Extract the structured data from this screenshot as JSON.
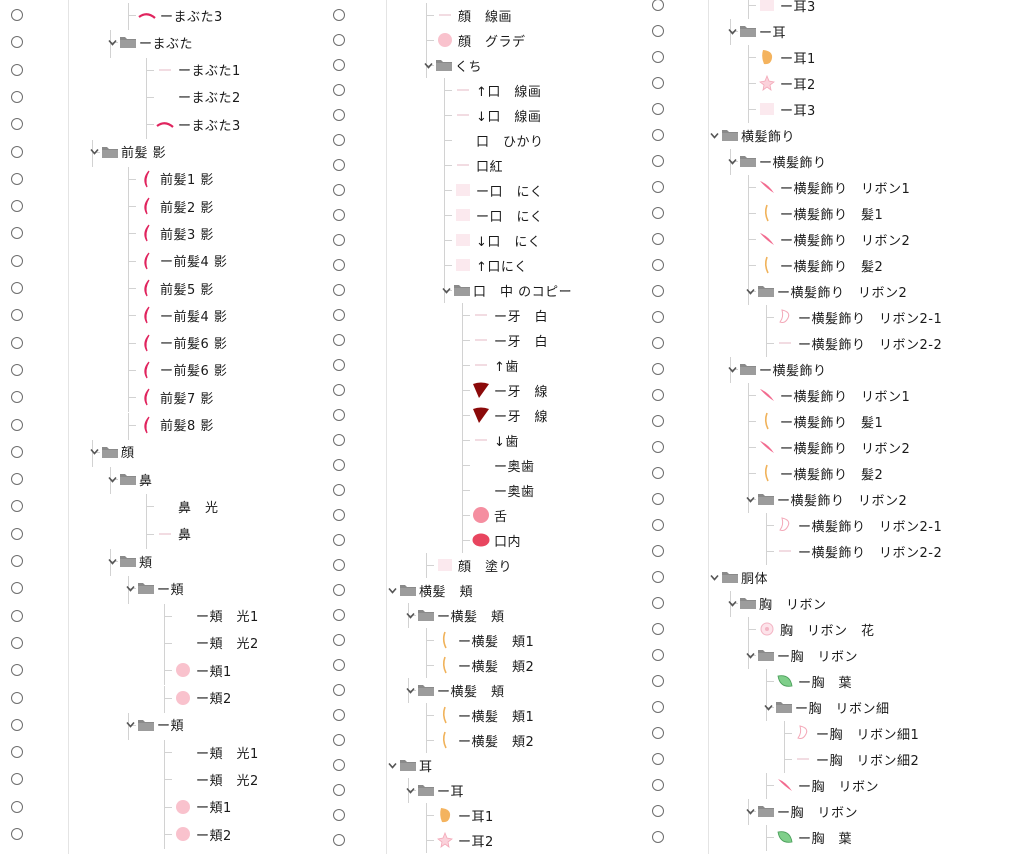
{
  "columns": [
    {
      "rows": [
        {
          "label": "ーまぶた3",
          "thumb": "red-stroke-thumbnail"
        },
        {
          "label": "ーまぶた",
          "folder": true
        },
        {
          "label": "ーまぶた1",
          "thumb": "faint-line-thumbnail"
        },
        {
          "label": "ーまぶた2",
          "thumb": "blank-thumbnail"
        },
        {
          "label": "ーまぶた3",
          "thumb": "red-stroke-thumbnail"
        },
        {
          "label": "前髪 影",
          "folder": true
        },
        {
          "label": "前髪1 影",
          "thumb": "red-shadow-thumbnail"
        },
        {
          "label": "前髪2 影",
          "thumb": "red-shadow-thumbnail"
        },
        {
          "label": "前髪3 影",
          "thumb": "red-shadow-thumbnail"
        },
        {
          "label": "ー前髪4 影",
          "thumb": "red-shadow-thumbnail"
        },
        {
          "label": "前髪5 影",
          "thumb": "red-shadow-thumbnail"
        },
        {
          "label": "ー前髪4 影",
          "thumb": "red-shadow-thumbnail"
        },
        {
          "label": "ー前髪6 影",
          "thumb": "red-shadow-thumbnail"
        },
        {
          "label": "ー前髪6 影",
          "thumb": "red-shadow-thumbnail"
        },
        {
          "label": "前髪7 影",
          "thumb": "red-shadow-thumbnail"
        },
        {
          "label": "前髪8 影",
          "thumb": "red-shadow-thumbnail"
        },
        {
          "label": "顔",
          "folder": true
        },
        {
          "label": "鼻",
          "folder": true
        },
        {
          "label": "鼻　光",
          "thumb": "blank-thumbnail"
        },
        {
          "label": "鼻",
          "thumb": "faint-line-thumbnail"
        },
        {
          "label": "頬",
          "folder": true
        },
        {
          "label": "ー頬",
          "folder": true
        },
        {
          "label": "ー頬　光1",
          "thumb": "blank-thumbnail"
        },
        {
          "label": "ー頬　光2",
          "thumb": "blank-thumbnail"
        },
        {
          "label": "ー頬1",
          "thumb": "pink-blush-thumbnail"
        },
        {
          "label": "ー頬2",
          "thumb": "pink-blush-thumbnail"
        },
        {
          "label": "ー頬",
          "folder": true
        },
        {
          "label": "ー頬　光1",
          "thumb": "blank-thumbnail"
        },
        {
          "label": "ー頬　光2",
          "thumb": "blank-thumbnail"
        },
        {
          "label": "ー頬1",
          "thumb": "pink-blush-thumbnail"
        },
        {
          "label": "ー頬2",
          "thumb": "pink-blush-thumbnail"
        }
      ]
    },
    {
      "rows": [
        {
          "label": "顔　線画",
          "thumb": "faint-line-thumbnail"
        },
        {
          "label": "顔　グラデ",
          "thumb": "pink-blush-thumbnail"
        },
        {
          "label": "くち",
          "folder": true
        },
        {
          "label": "↑口　線画",
          "thumb": "faint-line-thumbnail"
        },
        {
          "label": "↓口　線画",
          "thumb": "faint-line-thumbnail"
        },
        {
          "label": "口　ひかり",
          "thumb": "blank-thumbnail"
        },
        {
          "label": "口紅",
          "thumb": "faint-line-thumbnail"
        },
        {
          "label": "ー口　にく",
          "thumb": "faint-pink-thumbnail"
        },
        {
          "label": "ー口　にく",
          "thumb": "faint-pink-thumbnail"
        },
        {
          "label": "↓口　にく",
          "thumb": "faint-pink-thumbnail"
        },
        {
          "label": "↑口にく",
          "thumb": "faint-pink-thumbnail"
        },
        {
          "label": "口　中 のコピー",
          "folder": true
        },
        {
          "label": "ー牙　白",
          "thumb": "faint-line-thumbnail"
        },
        {
          "label": "ー牙　白",
          "thumb": "faint-line-thumbnail"
        },
        {
          "label": "↑歯",
          "thumb": "faint-line-thumbnail"
        },
        {
          "label": "ー牙　線",
          "thumb": "dark-red-fang-thumbnail"
        },
        {
          "label": "ー牙　線",
          "thumb": "dark-red-fang-thumbnail"
        },
        {
          "label": "↓歯",
          "thumb": "faint-line-thumbnail"
        },
        {
          "label": "ー奥歯",
          "thumb": "blank-thumbnail"
        },
        {
          "label": "ー奥歯",
          "thumb": "blank-thumbnail"
        },
        {
          "label": "舌",
          "thumb": "pink-circle-thumbnail"
        },
        {
          "label": "口内",
          "thumb": "red-oval-thumbnail"
        },
        {
          "label": "顔　塗り",
          "thumb": "faint-pink-thumbnail"
        },
        {
          "label": "横髪　頬",
          "folder": true
        },
        {
          "label": "ー横髪　頬",
          "folder": true
        },
        {
          "label": "ー横髪　頬1",
          "thumb": "orange-strand-thumbnail"
        },
        {
          "label": "ー横髪　頬2",
          "thumb": "orange-strand-thumbnail"
        },
        {
          "label": "ー横髪　頬",
          "folder": true
        },
        {
          "label": "ー横髪　頬1",
          "thumb": "orange-strand-thumbnail"
        },
        {
          "label": "ー横髪　頬2",
          "thumb": "orange-strand-thumbnail"
        },
        {
          "label": "耳",
          "folder": true
        },
        {
          "label": "ー耳",
          "folder": true
        },
        {
          "label": "ー耳1",
          "thumb": "orange-ear-thumbnail"
        },
        {
          "label": "ー耳2",
          "thumb": "pink-ear-thumbnail"
        }
      ]
    },
    {
      "rows": [
        {
          "label": "ー耳3",
          "thumb": "faint-pink-thumbnail"
        },
        {
          "label": "ー耳",
          "folder": true
        },
        {
          "label": "ー耳1",
          "thumb": "orange-ear-thumbnail"
        },
        {
          "label": "ー耳2",
          "thumb": "pink-ear-thumbnail"
        },
        {
          "label": "ー耳3",
          "thumb": "faint-pink-thumbnail"
        },
        {
          "label": "横髪飾り",
          "folder": true
        },
        {
          "label": "ー横髪飾り",
          "folder": true
        },
        {
          "label": "ー横髪飾り　リボン1",
          "thumb": "pink-ribbon-thumbnail"
        },
        {
          "label": "ー横髪飾り　髪1",
          "thumb": "orange-strand-thumbnail"
        },
        {
          "label": "ー横髪飾り　リボン2",
          "thumb": "pink-ribbon-thumbnail"
        },
        {
          "label": "ー横髪飾り　髪2",
          "thumb": "orange-strand-thumbnail"
        },
        {
          "label": "ー横髪飾り　リボン2",
          "folder": true
        },
        {
          "label": "ー横髪飾り　リボン2-1",
          "thumb": "pink-outline-thumbnail"
        },
        {
          "label": "ー横髪飾り　リボン2-2",
          "thumb": "faint-line-thumbnail"
        },
        {
          "label": "ー横髪飾り",
          "folder": true
        },
        {
          "label": "ー横髪飾り　リボン1",
          "thumb": "pink-ribbon-thumbnail"
        },
        {
          "label": "ー横髪飾り　髪1",
          "thumb": "orange-strand-thumbnail"
        },
        {
          "label": "ー横髪飾り　リボン2",
          "thumb": "pink-ribbon-thumbnail"
        },
        {
          "label": "ー横髪飾り　髪2",
          "thumb": "orange-strand-thumbnail"
        },
        {
          "label": "ー横髪飾り　リボン2",
          "folder": true
        },
        {
          "label": "ー横髪飾り　リボン2-1",
          "thumb": "pink-outline-thumbnail"
        },
        {
          "label": "ー横髪飾り　リボン2-2",
          "thumb": "faint-line-thumbnail"
        },
        {
          "label": "胴体",
          "folder": true
        },
        {
          "label": "胸　リボン",
          "folder": true
        },
        {
          "label": "胸　リボン　花",
          "thumb": "pink-flower-thumbnail"
        },
        {
          "label": "ー胸　リボン",
          "folder": true
        },
        {
          "label": "ー胸　葉",
          "thumb": "green-leaf-thumbnail"
        },
        {
          "label": "ー胸　リボン細",
          "folder": true
        },
        {
          "label": "ー胸　リボン細1",
          "thumb": "pink-outline-thumbnail"
        },
        {
          "label": "ー胸　リボン細2",
          "thumb": "faint-line-thumbnail"
        },
        {
          "label": "ー胸　リボン",
          "thumb": "pink-ribbon-thumbnail"
        },
        {
          "label": "ー胸　リボン",
          "folder": true
        },
        {
          "label": "ー胸　葉",
          "thumb": "green-leaf-thumbnail"
        }
      ]
    }
  ]
}
